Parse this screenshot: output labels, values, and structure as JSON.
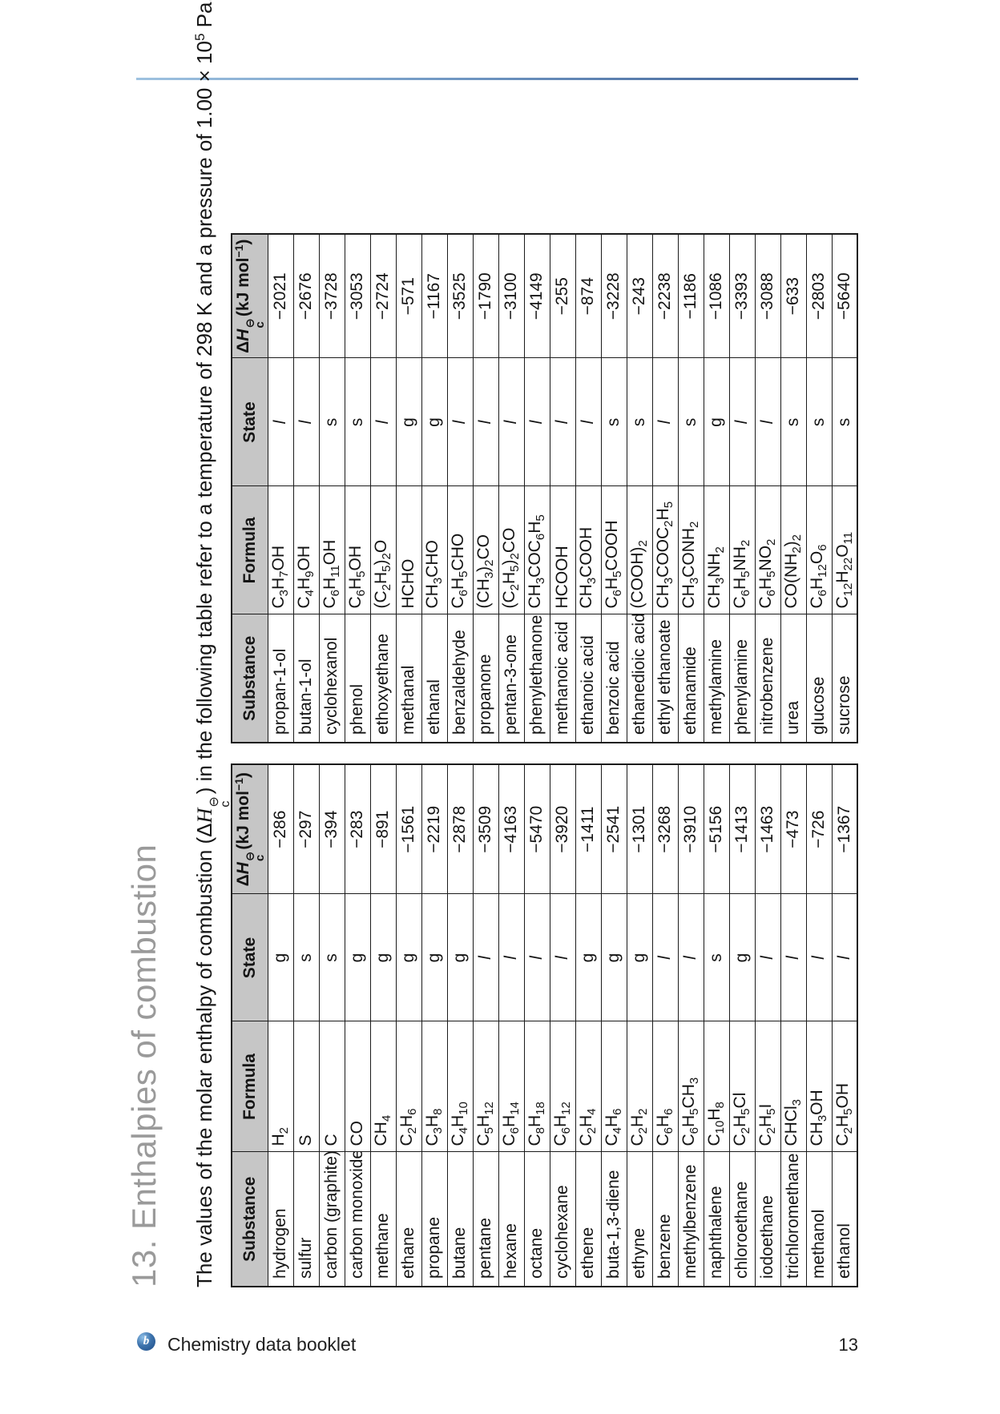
{
  "page": {
    "title": "13. Enthalpies of combustion",
    "accent_color": "#6f96c2",
    "header_gray": "#c6c6c6"
  },
  "intro": {
    "before": "The values of the molar enthalpy of combustion (Δ",
    "h": "H",
    "sup": "⊖",
    "sub": "c",
    "middle": ") in the following table refer to a temperature of 298 K and a pressure of 1.00 × 10",
    "exponent": "5",
    "after": " Pa."
  },
  "table_headers": {
    "substance": "Substance",
    "formula": "Formula",
    "state": "State",
    "dh_prefix": "Δ",
    "dh_h": "H",
    "dh_sup": "⊖",
    "dh_sub": "c",
    "dh_units": "(kJ mol",
    "dh_units_exp": "−1",
    "dh_units_close": ")"
  },
  "table1": {
    "rows": [
      {
        "substance": "hydrogen",
        "formula": "H2",
        "state": "g",
        "dh": "−286"
      },
      {
        "substance": "sulfur",
        "formula": "S",
        "state": "s",
        "dh": "−297"
      },
      {
        "substance": "carbon (graphite)",
        "formula": "C",
        "state": "s",
        "dh": "−394"
      },
      {
        "substance": "carbon monoxide",
        "formula": "CO",
        "state": "g",
        "dh": "−283"
      },
      {
        "substance": "methane",
        "formula": "CH4",
        "state": "g",
        "dh": "−891"
      },
      {
        "substance": "ethane",
        "formula": "C2H6",
        "state": "g",
        "dh": "−1561"
      },
      {
        "substance": "propane",
        "formula": "C3H8",
        "state": "g",
        "dh": "−2219"
      },
      {
        "substance": "butane",
        "formula": "C4H10",
        "state": "g",
        "dh": "−2878"
      },
      {
        "substance": "pentane",
        "formula": "C5H12",
        "state": "l",
        "dh": "−3509"
      },
      {
        "substance": "hexane",
        "formula": "C6H14",
        "state": "l",
        "dh": "−4163"
      },
      {
        "substance": "octane",
        "formula": "C8H18",
        "state": "l",
        "dh": "−5470"
      },
      {
        "substance": "cyclohexane",
        "formula": "C6H12",
        "state": "l",
        "dh": "−3920"
      },
      {
        "substance": "ethene",
        "formula": "C2H4",
        "state": "g",
        "dh": "−1411"
      },
      {
        "substance": "buta-1,3-diene",
        "formula": "C4H6",
        "state": "g",
        "dh": "−2541"
      },
      {
        "substance": "ethyne",
        "formula": "C2H2",
        "state": "g",
        "dh": "−1301"
      },
      {
        "substance": "benzene",
        "formula": "C6H6",
        "state": "l",
        "dh": "−3268"
      },
      {
        "substance": "methylbenzene",
        "formula": "C6H5CH3",
        "state": "l",
        "dh": "−3910"
      },
      {
        "substance": "naphthalene",
        "formula": "C10H8",
        "state": "s",
        "dh": "−5156"
      },
      {
        "substance": "chloroethane",
        "formula": "C2H5Cl",
        "state": "g",
        "dh": "−1413"
      },
      {
        "substance": "iodoethane",
        "formula": "C2H5I",
        "state": "l",
        "dh": "−1463"
      },
      {
        "substance": "trichloromethane",
        "formula": "CHCl3",
        "state": "l",
        "dh": "−473"
      },
      {
        "substance": "methanol",
        "formula": "CH3OH",
        "state": "l",
        "dh": "−726"
      },
      {
        "substance": "ethanol",
        "formula": "C2H5OH",
        "state": "l",
        "dh": "−1367"
      }
    ]
  },
  "table2": {
    "rows": [
      {
        "substance": "propan-1-ol",
        "formula": "C3H7OH",
        "state": "l",
        "dh": "−2021"
      },
      {
        "substance": "butan-1-ol",
        "formula": "C4H9OH",
        "state": "l",
        "dh": "−2676"
      },
      {
        "substance": "cyclohexanol",
        "formula": "C6H11OH",
        "state": "s",
        "dh": "−3728"
      },
      {
        "substance": "phenol",
        "formula": "C6H5OH",
        "state": "s",
        "dh": "−3053"
      },
      {
        "substance": "ethoxyethane",
        "formula": "(C2H5)2O",
        "state": "l",
        "dh": "−2724"
      },
      {
        "substance": "methanal",
        "formula": "HCHO",
        "state": "g",
        "dh": "−571"
      },
      {
        "substance": "ethanal",
        "formula": "CH3CHO",
        "state": "g",
        "dh": "−1167"
      },
      {
        "substance": "benzaldehyde",
        "formula": "C6H5CHO",
        "state": "l",
        "dh": "−3525"
      },
      {
        "substance": "propanone",
        "formula": "(CH3)2CO",
        "state": "l",
        "dh": "−1790"
      },
      {
        "substance": "pentan-3-one",
        "formula": "(C2H5)2CO",
        "state": "l",
        "dh": "−3100"
      },
      {
        "substance": "phenylethanone",
        "formula": "CH3COC6H5",
        "state": "l",
        "dh": "−4149"
      },
      {
        "substance": "methanoic acid",
        "formula": "HCOOH",
        "state": "l",
        "dh": "−255"
      },
      {
        "substance": "ethanoic acid",
        "formula": "CH3COOH",
        "state": "l",
        "dh": "−874"
      },
      {
        "substance": "benzoic acid",
        "formula": "C6H5COOH",
        "state": "s",
        "dh": "−3228"
      },
      {
        "substance": "ethanedioic acid",
        "formula": "(COOH)2",
        "state": "s",
        "dh": "−243"
      },
      {
        "substance": "ethyl ethanoate",
        "formula": "CH3COOC2H5",
        "state": "l",
        "dh": "−2238"
      },
      {
        "substance": "ethanamide",
        "formula": "CH3CONH2",
        "state": "s",
        "dh": "−1186"
      },
      {
        "substance": "methylamine",
        "formula": "CH3NH2",
        "state": "g",
        "dh": "−1086"
      },
      {
        "substance": "phenylamine",
        "formula": "C6H5NH2",
        "state": "l",
        "dh": "−3393"
      },
      {
        "substance": "nitrobenzene",
        "formula": "C6H5NO2",
        "state": "l",
        "dh": "−3088"
      },
      {
        "substance": "urea",
        "formula": "CO(NH2)2",
        "state": "s",
        "dh": "−633"
      },
      {
        "substance": "glucose",
        "formula": "C6H12O6",
        "state": "s",
        "dh": "−2803"
      },
      {
        "substance": "sucrose",
        "formula": "C12H22O11",
        "state": "s",
        "dh": "−5640"
      }
    ]
  },
  "footer": {
    "logo_letter": "b",
    "booklet": "Chemistry data booklet",
    "page_number": "13"
  }
}
